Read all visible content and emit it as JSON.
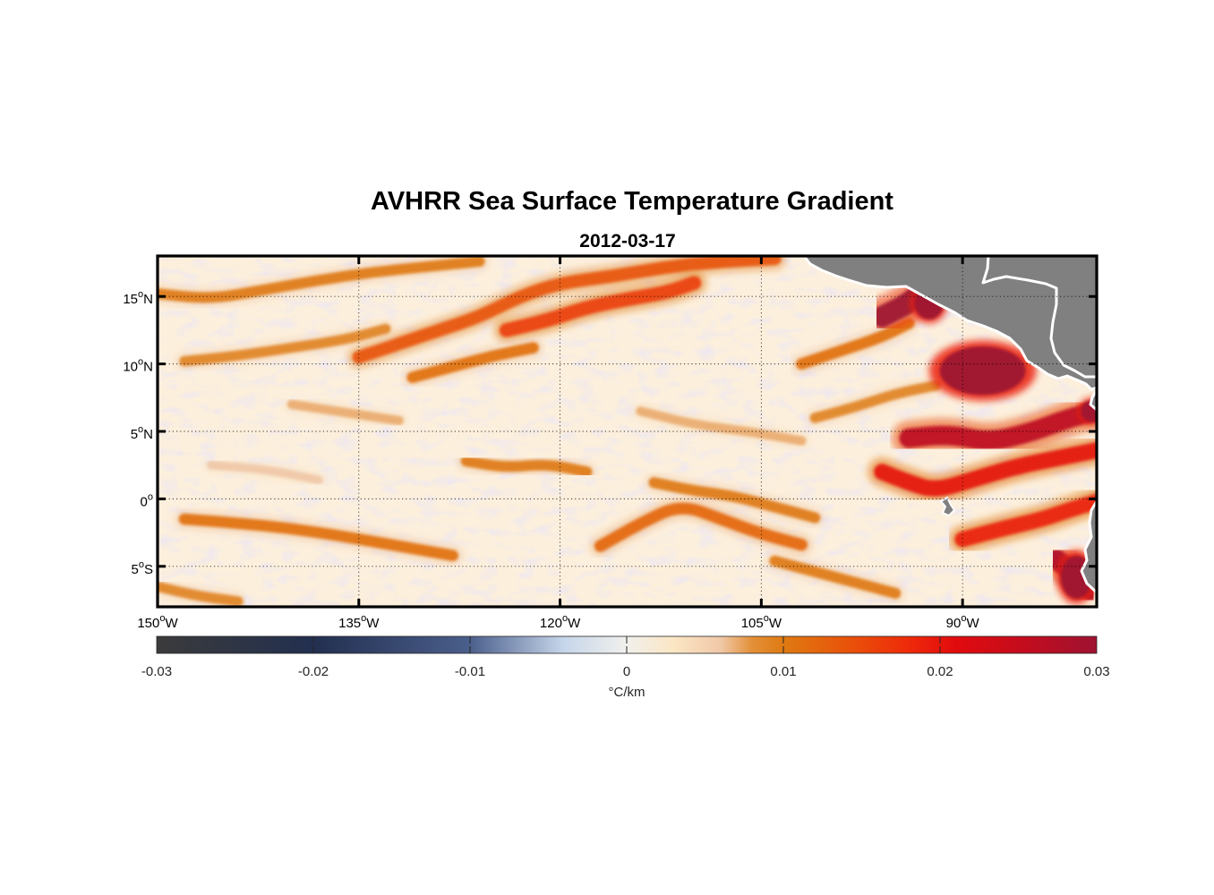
{
  "figure": {
    "title": "AVHRR Sea Surface Temperature Gradient",
    "subtitle": "2012-03-17"
  },
  "map": {
    "lon_range": [
      -150,
      -80
    ],
    "lat_range": [
      -8,
      18
    ],
    "lon_ticks": [
      {
        "value": -150,
        "deg": "150",
        "hem": "W"
      },
      {
        "value": -135,
        "deg": "135",
        "hem": "W"
      },
      {
        "value": -120,
        "deg": "120",
        "hem": "W"
      },
      {
        "value": -105,
        "deg": "105",
        "hem": "W"
      },
      {
        "value": -90,
        "deg": "90",
        "hem": "W"
      }
    ],
    "lat_ticks": [
      {
        "value": 15,
        "deg": "15",
        "hem": "N"
      },
      {
        "value": 10,
        "deg": "10",
        "hem": "N"
      },
      {
        "value": 5,
        "deg": "5",
        "hem": "N"
      },
      {
        "value": 0,
        "deg": "0",
        "hem": ""
      },
      {
        "value": -5,
        "deg": "5",
        "hem": "S"
      }
    ],
    "grid": true,
    "land_color": "#808080",
    "coast_color": "#ffffff",
    "gradient_bands": [
      {
        "points": [
          [
            -150,
            15.2
          ],
          [
            -146,
            14.8
          ],
          [
            -142,
            15.5
          ],
          [
            -138,
            16.2
          ],
          [
            -134,
            16.8
          ],
          [
            -130,
            17.2
          ],
          [
            -126,
            17.6
          ]
        ],
        "level": 0.01
      },
      {
        "points": [
          [
            -135,
            10.5
          ],
          [
            -132,
            11.5
          ],
          [
            -129,
            12.5
          ],
          [
            -126,
            13.5
          ],
          [
            -123,
            15
          ],
          [
            -120,
            16
          ],
          [
            -116,
            16.5
          ],
          [
            -112,
            17.2
          ],
          [
            -108,
            17.6
          ],
          [
            -104,
            17.8
          ]
        ],
        "level": 0.014
      },
      {
        "points": [
          [
            -124,
            12.5
          ],
          [
            -121,
            13.2
          ],
          [
            -118,
            14.2
          ],
          [
            -115,
            14.8
          ],
          [
            -112,
            15.3
          ],
          [
            -110,
            16
          ]
        ],
        "level": 0.016
      },
      {
        "points": [
          [
            -148,
            10.2
          ],
          [
            -144,
            10.6
          ],
          [
            -140,
            11.2
          ],
          [
            -136,
            11.8
          ],
          [
            -133,
            12.6
          ]
        ],
        "level": 0.009
      },
      {
        "points": [
          [
            -131,
            9
          ],
          [
            -128,
            9.8
          ],
          [
            -125,
            10.6
          ],
          [
            -122,
            11.2
          ]
        ],
        "level": 0.011
      },
      {
        "points": [
          [
            -127,
            2.8
          ],
          [
            -124,
            2.3
          ],
          [
            -121,
            2.6
          ],
          [
            -118,
            2
          ]
        ],
        "level": 0.01
      },
      {
        "points": [
          [
            -148,
            -1.5
          ],
          [
            -144,
            -1.8
          ],
          [
            -140,
            -2.2
          ],
          [
            -136,
            -2.8
          ],
          [
            -132,
            -3.5
          ],
          [
            -128,
            -4.2
          ]
        ],
        "level": 0.011
      },
      {
        "points": [
          [
            -150,
            -6.5
          ],
          [
            -147,
            -7.2
          ],
          [
            -144,
            -7.6
          ]
        ],
        "level": 0.009
      },
      {
        "points": [
          [
            -117,
            -3.5
          ],
          [
            -114,
            -1.8
          ],
          [
            -111,
            -0.4
          ],
          [
            -108,
            -1.5
          ],
          [
            -105,
            -2.6
          ],
          [
            -102,
            -3.4
          ]
        ],
        "level": 0.012
      },
      {
        "points": [
          [
            -113,
            1.2
          ],
          [
            -110,
            0.6
          ],
          [
            -107,
            0.2
          ],
          [
            -104,
            -0.6
          ],
          [
            -101,
            -1.4
          ]
        ],
        "level": 0.01
      },
      {
        "points": [
          [
            -104,
            -4.6
          ],
          [
            -101,
            -5.4
          ],
          [
            -98,
            -6.2
          ],
          [
            -95,
            -7
          ]
        ],
        "level": 0.01
      },
      {
        "points": [
          [
            -101,
            6
          ],
          [
            -98,
            6.8
          ],
          [
            -95,
            7.8
          ],
          [
            -92,
            8.4
          ]
        ],
        "level": 0.009
      },
      {
        "points": [
          [
            -102,
            10
          ],
          [
            -99,
            11
          ],
          [
            -96,
            12
          ],
          [
            -94,
            13
          ]
        ],
        "level": 0.011
      },
      {
        "points": [
          [
            -96,
            13.5
          ],
          [
            -94,
            14.5
          ],
          [
            -93,
            15.4
          ],
          [
            -92,
            16.4
          ]
        ],
        "level": 0.03
      },
      {
        "points": [
          [
            -96,
            2
          ],
          [
            -94,
            1.2
          ],
          [
            -92,
            0.6
          ],
          [
            -89,
            1.5
          ],
          [
            -86,
            2.4
          ],
          [
            -83,
            3
          ],
          [
            -80,
            3.6
          ]
        ],
        "level": 0.02
      },
      {
        "points": [
          [
            -94,
            4.5
          ],
          [
            -91,
            4.8
          ],
          [
            -88,
            4.2
          ],
          [
            -85,
            4.9
          ],
          [
            -82,
            6
          ],
          [
            -80,
            6.5
          ]
        ],
        "level": 0.026
      },
      {
        "points": [
          [
            -90,
            -3
          ],
          [
            -87,
            -2.2
          ],
          [
            -84,
            -1.5
          ],
          [
            -82,
            -0.8
          ],
          [
            -80,
            -0.2
          ]
        ],
        "level": 0.019
      },
      {
        "points": [
          [
            -83,
            -4.5
          ],
          [
            -81.5,
            -5.6
          ],
          [
            -80.5,
            -6.8
          ]
        ],
        "level": 0.028
      },
      {
        "points": [
          [
            -140,
            7
          ],
          [
            -136,
            6.4
          ],
          [
            -132,
            5.8
          ]
        ],
        "level": 0.007
      },
      {
        "points": [
          [
            -114,
            6.5
          ],
          [
            -110,
            5.5
          ],
          [
            -106,
            5
          ],
          [
            -102,
            4.3
          ]
        ],
        "level": 0.007
      },
      {
        "points": [
          [
            -146,
            2.5
          ],
          [
            -142,
            2.2
          ],
          [
            -138,
            1.4
          ]
        ],
        "level": 0.006
      }
    ],
    "hotspots": [
      {
        "lon": -88.5,
        "lat": 9.5,
        "rlon": 3.2,
        "rlat": 1.8,
        "level": 0.03
      },
      {
        "lon": -81.5,
        "lat": -5.8,
        "rlon": 1.2,
        "rlat": 1.6,
        "level": 0.03
      },
      {
        "lon": -92.5,
        "lat": 14.5,
        "rlon": 1.1,
        "rlat": 1.2,
        "level": 0.03
      },
      {
        "lon": -80.4,
        "lat": 6.5,
        "rlon": 0.8,
        "rlat": 0.8,
        "level": 0.03
      }
    ]
  },
  "colorbar": {
    "range": [
      -0.03,
      0.03
    ],
    "tick_labels": [
      "-0.03",
      "-0.02",
      "-0.01",
      "0",
      "0.01",
      "0.02",
      "0.03"
    ],
    "tick_values": [
      -0.03,
      -0.02,
      -0.01,
      0,
      0.01,
      0.02,
      0.03
    ],
    "units": "°C/km",
    "stops": [
      {
        "v": -0.03,
        "c": "#3b3b3b"
      },
      {
        "v": -0.02,
        "c": "#222f4f"
      },
      {
        "v": -0.01,
        "c": "#4b5f8c"
      },
      {
        "v": -0.004,
        "c": "#c6d6ea"
      },
      {
        "v": 0.0,
        "c": "#f1f0ec"
      },
      {
        "v": 0.003,
        "c": "#fbe6c4"
      },
      {
        "v": 0.006,
        "c": "#f0c8a8"
      },
      {
        "v": 0.008,
        "c": "#e39038"
      },
      {
        "v": 0.01,
        "c": "#df7a12"
      },
      {
        "v": 0.014,
        "c": "#e8540a"
      },
      {
        "v": 0.018,
        "c": "#ee2a0a"
      },
      {
        "v": 0.021,
        "c": "#e10b0e"
      },
      {
        "v": 0.025,
        "c": "#c60c1c"
      },
      {
        "v": 0.03,
        "c": "#9e1231"
      }
    ]
  }
}
